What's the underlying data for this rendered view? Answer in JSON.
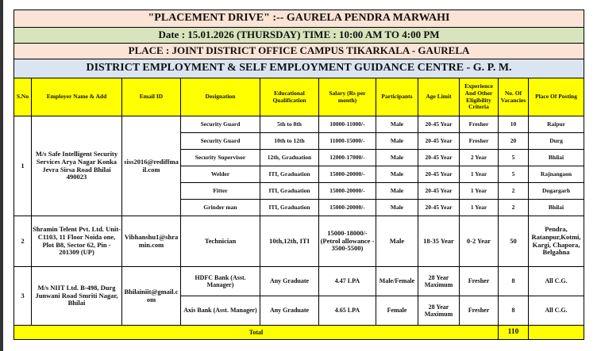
{
  "banner": {
    "title": "\"PLACEMENT  DRIVE\" :-- GAURELA  PENDRA  MARWAHI",
    "date_time": "Date :  15.01.2026  (THURSDAY)   TIME :  10:00 AM TO 4:00 PM",
    "place": "PLACE :    JOINT  DISTRICT  OFFICE  CAMPUS  TIKARKALA - GAURELA",
    "office": "DISTRICT EMPLOYMENT & SELF EMPLOYMENT GUIDANCE CENTRE - G. P. M."
  },
  "colors": {
    "peach": "#fbe4d5",
    "green": "#d7e4bd",
    "blue": "#dbe5f1",
    "yellow": "#ffff00"
  },
  "headers": [
    "S.No",
    "Employer Name & Add",
    "Email ID",
    "Designation",
    "Educational Qualification",
    "Salary (Rs per month)",
    "Participants",
    "Age Limit",
    "Experience And Other Eligibility Criteria",
    "No. Of Vacancies",
    "Place Of Posting"
  ],
  "employers": [
    {
      "sno": "1",
      "name": "M/s Safe Intelligent Security Services Arya Nagar Konka Jevra Sirsa Road Bhilai 490023",
      "email": "siss2016@rediffmail.com",
      "jobs": [
        {
          "designation": "Security Guard",
          "qualification": "5th to 8th",
          "salary": "10000-11000/-",
          "participants": "Male",
          "age": "20-45 Year",
          "experience": "Fresher",
          "vacancies": "10",
          "posting": "Raipur"
        },
        {
          "designation": "Security Guard",
          "qualification": "10th to 12th",
          "salary": "11000-15000/-",
          "participants": "Male",
          "age": "20-45 Year",
          "experience": "Fresher",
          "vacancies": "20",
          "posting": "Durg"
        },
        {
          "designation": "Security Supervisor",
          "qualification": "12th, Graduation",
          "salary": "12000-17000/-",
          "participants": "Male",
          "age": "20-45 Year",
          "experience": "2 Year",
          "vacancies": "5",
          "posting": "Bhilai"
        },
        {
          "designation": "Welder",
          "qualification": "ITI, Graduation",
          "salary": "15000-20000/-",
          "participants": "Male",
          "age": "20-45 Year",
          "experience": "1 Year",
          "vacancies": "5",
          "posting": "Rajnangaon"
        },
        {
          "designation": "Fitter",
          "qualification": "ITI, Graduation",
          "salary": "15000-20000/-",
          "participants": "Male",
          "age": "20-45 Year",
          "experience": "1 Year",
          "vacancies": "2",
          "posting": "Dogargarh"
        },
        {
          "designation": "Grinder man",
          "qualification": "ITI, Graduation",
          "salary": "15000-20000/-",
          "participants": "Male",
          "age": "20-45 Year",
          "experience": "1 Year",
          "vacancies": "2",
          "posting": "Bhilai"
        }
      ]
    },
    {
      "sno": "2",
      "name": "Shramin Telent Pvt. Ltd. Unit- C1103, 11 Floor Noida one, Plot B8, Sector 62, Pin - 201309 (UP)",
      "email": "Vibhanshu1@shramin.com",
      "jobs": [
        {
          "designation": "Technician",
          "qualification": "10th,12th, ITI",
          "salary": "15000-18000/- (Petrol allowance - 3500-5500)",
          "participants": "Male",
          "age": "18-35 Year",
          "experience": "0-2 Year",
          "vacancies": "50",
          "posting": "Pendra, Ratanpur,Kotmi, Kargi, Chapora, Belgahna"
        }
      ]
    },
    {
      "sno": "3",
      "name": "M/s NIIT Ltd. B-498, Durg Junwani Road Smriti Nagar, Bhilai",
      "email": "Bhilainiit@gmail.com",
      "jobs": [
        {
          "designation": "HDFC Bank (Asst. Manager)",
          "qualification": "Any Graduate",
          "salary": "4.47 LPA",
          "participants": "Male/Female",
          "age": "28 Year Maximum",
          "experience": "Fresher",
          "vacancies": "8",
          "posting": "All C.G."
        },
        {
          "designation": "Axis Bank (Asst. Manager)",
          "qualification": "Any Graduate",
          "salary": "4.65 LPA",
          "participants": "Female",
          "age": "28 Year Maximum",
          "experience": "Fresher",
          "vacancies": "8",
          "posting": "All C.G."
        }
      ]
    }
  ],
  "total": {
    "label": "Total",
    "vacancies": "110"
  }
}
